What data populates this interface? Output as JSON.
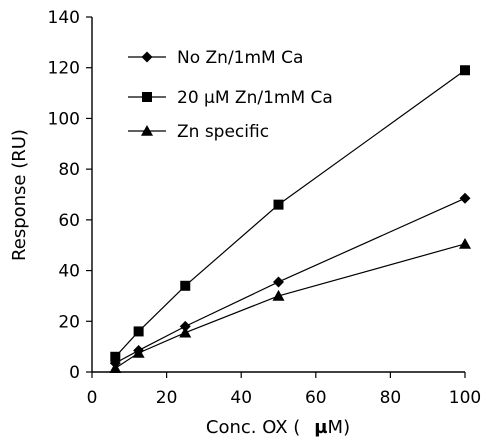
{
  "chart_data": {
    "type": "line",
    "xlabel_prefix": "Conc. OX (",
    "xlabel_mu": "µ",
    "xlabel_suffix": "M)",
    "ylabel": "Response (RU)",
    "xlim": [
      0,
      100
    ],
    "ylim": [
      0,
      140
    ],
    "xticks": [
      0,
      20,
      40,
      60,
      80,
      100
    ],
    "yticks": [
      0,
      20,
      40,
      60,
      80,
      100,
      120,
      140
    ],
    "grid": false,
    "legend_position": "top-left",
    "series": [
      {
        "name": "No Zn/1mM Ca",
        "marker": "diamond",
        "x": [
          6.25,
          12.5,
          25,
          50,
          100
        ],
        "y": [
          3.5,
          8.5,
          18,
          35.5,
          68.5
        ]
      },
      {
        "name": "20 µM Zn/1mM Ca",
        "marker": "square",
        "x": [
          6.25,
          12.5,
          25,
          50,
          100
        ],
        "y": [
          6,
          16,
          34,
          66,
          119
        ]
      },
      {
        "name": "Zn specific",
        "marker": "triangle",
        "x": [
          6.25,
          12.5,
          25,
          50,
          100
        ],
        "y": [
          1.5,
          7.5,
          15.5,
          30,
          50.5
        ]
      }
    ]
  }
}
